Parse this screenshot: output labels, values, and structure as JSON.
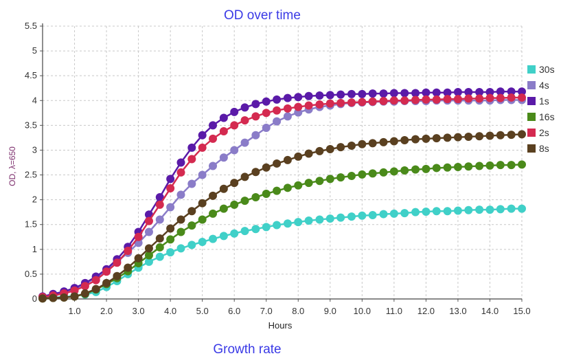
{
  "chart_data": {
    "type": "line",
    "title": "OD over time",
    "xlabel": "Hours",
    "ylabel": "OD, λ=650",
    "footer": "Growth rate",
    "xlim": [
      0,
      15
    ],
    "ylim": [
      0,
      5.5
    ],
    "x_ticks": [
      "1.0",
      "2.0",
      "3.0",
      "4.0",
      "5.0",
      "6.0",
      "7.0",
      "8.0",
      "9.0",
      "10.0",
      "11.0",
      "12.0",
      "13.0",
      "14.0",
      "15.0"
    ],
    "y_ticks": [
      "0",
      "0.5",
      "1",
      "1.5",
      "2",
      "2.5",
      "3",
      "3.5",
      "4",
      "4.5",
      "5",
      "5.5"
    ],
    "grid": true,
    "legend_position": "right",
    "x": [
      0.0,
      0.33,
      0.67,
      1.0,
      1.33,
      1.67,
      2.0,
      2.33,
      2.67,
      3.0,
      3.33,
      3.67,
      4.0,
      4.33,
      4.67,
      5.0,
      5.33,
      5.67,
      6.0,
      6.33,
      6.67,
      7.0,
      7.33,
      7.67,
      8.0,
      8.33,
      8.67,
      9.0,
      9.33,
      9.67,
      10.0,
      10.33,
      10.67,
      11.0,
      11.33,
      11.67,
      12.0,
      12.33,
      12.67,
      13.0,
      13.33,
      13.67,
      14.0,
      14.33,
      14.67,
      15.0
    ],
    "series": [
      {
        "name": "30s",
        "color": "#40d0c8",
        "values": [
          0.02,
          0.03,
          0.04,
          0.06,
          0.09,
          0.14,
          0.24,
          0.36,
          0.5,
          0.63,
          0.75,
          0.85,
          0.94,
          1.02,
          1.09,
          1.15,
          1.21,
          1.27,
          1.32,
          1.37,
          1.41,
          1.45,
          1.49,
          1.52,
          1.55,
          1.58,
          1.6,
          1.62,
          1.64,
          1.66,
          1.68,
          1.69,
          1.71,
          1.72,
          1.73,
          1.75,
          1.76,
          1.77,
          1.77,
          1.78,
          1.79,
          1.8,
          1.8,
          1.81,
          1.82,
          1.82
        ]
      },
      {
        "name": "4s",
        "color": "#8a7cc8",
        "values": [
          0.03,
          0.06,
          0.12,
          0.2,
          0.3,
          0.43,
          0.58,
          0.75,
          0.93,
          1.13,
          1.35,
          1.6,
          1.85,
          2.1,
          2.32,
          2.5,
          2.68,
          2.85,
          3.0,
          3.15,
          3.3,
          3.45,
          3.58,
          3.68,
          3.76,
          3.82,
          3.87,
          3.9,
          3.93,
          3.95,
          3.96,
          3.97,
          3.98,
          3.98,
          3.99,
          3.99,
          3.99,
          4.0,
          4.0,
          4.0,
          4.0,
          4.0,
          4.0,
          4.01,
          4.01,
          4.01
        ]
      },
      {
        "name": "1s",
        "color": "#5a1aa8",
        "values": [
          0.05,
          0.1,
          0.15,
          0.22,
          0.32,
          0.45,
          0.6,
          0.8,
          1.05,
          1.35,
          1.7,
          2.05,
          2.42,
          2.75,
          3.05,
          3.3,
          3.5,
          3.65,
          3.77,
          3.86,
          3.93,
          3.98,
          4.02,
          4.05,
          4.07,
          4.09,
          4.1,
          4.11,
          4.12,
          4.13,
          4.13,
          4.14,
          4.14,
          4.15,
          4.15,
          4.15,
          4.16,
          4.16,
          4.16,
          4.17,
          4.17,
          4.17,
          4.17,
          4.18,
          4.18,
          4.18
        ]
      },
      {
        "name": "16s",
        "color": "#4a8a1a",
        "values": [
          0.01,
          0.02,
          0.03,
          0.05,
          0.1,
          0.19,
          0.3,
          0.42,
          0.56,
          0.72,
          0.88,
          1.04,
          1.2,
          1.35,
          1.48,
          1.6,
          1.72,
          1.82,
          1.9,
          1.98,
          2.05,
          2.12,
          2.18,
          2.24,
          2.29,
          2.34,
          2.38,
          2.42,
          2.45,
          2.48,
          2.51,
          2.53,
          2.55,
          2.57,
          2.59,
          2.61,
          2.62,
          2.64,
          2.65,
          2.66,
          2.67,
          2.68,
          2.69,
          2.7,
          2.7,
          2.71
        ]
      },
      {
        "name": "2s",
        "color": "#d42a50",
        "values": [
          0.04,
          0.07,
          0.11,
          0.17,
          0.26,
          0.38,
          0.55,
          0.73,
          0.97,
          1.25,
          1.57,
          1.9,
          2.23,
          2.55,
          2.82,
          3.05,
          3.23,
          3.38,
          3.5,
          3.6,
          3.68,
          3.75,
          3.8,
          3.84,
          3.87,
          3.9,
          3.92,
          3.94,
          3.95,
          3.96,
          3.97,
          3.98,
          3.99,
          4.0,
          4.0,
          4.01,
          4.02,
          4.02,
          4.03,
          4.03,
          4.04,
          4.04,
          4.05,
          4.05,
          4.06,
          4.06
        ]
      },
      {
        "name": "8s",
        "color": "#5a4020",
        "values": [
          0.01,
          0.02,
          0.03,
          0.05,
          0.11,
          0.2,
          0.32,
          0.46,
          0.63,
          0.82,
          1.02,
          1.22,
          1.42,
          1.6,
          1.77,
          1.93,
          2.08,
          2.22,
          2.34,
          2.46,
          2.56,
          2.65,
          2.73,
          2.8,
          2.87,
          2.93,
          2.98,
          3.02,
          3.06,
          3.09,
          3.12,
          3.14,
          3.16,
          3.18,
          3.2,
          3.22,
          3.23,
          3.24,
          3.25,
          3.26,
          3.27,
          3.28,
          3.29,
          3.3,
          3.31,
          3.32
        ]
      }
    ]
  }
}
